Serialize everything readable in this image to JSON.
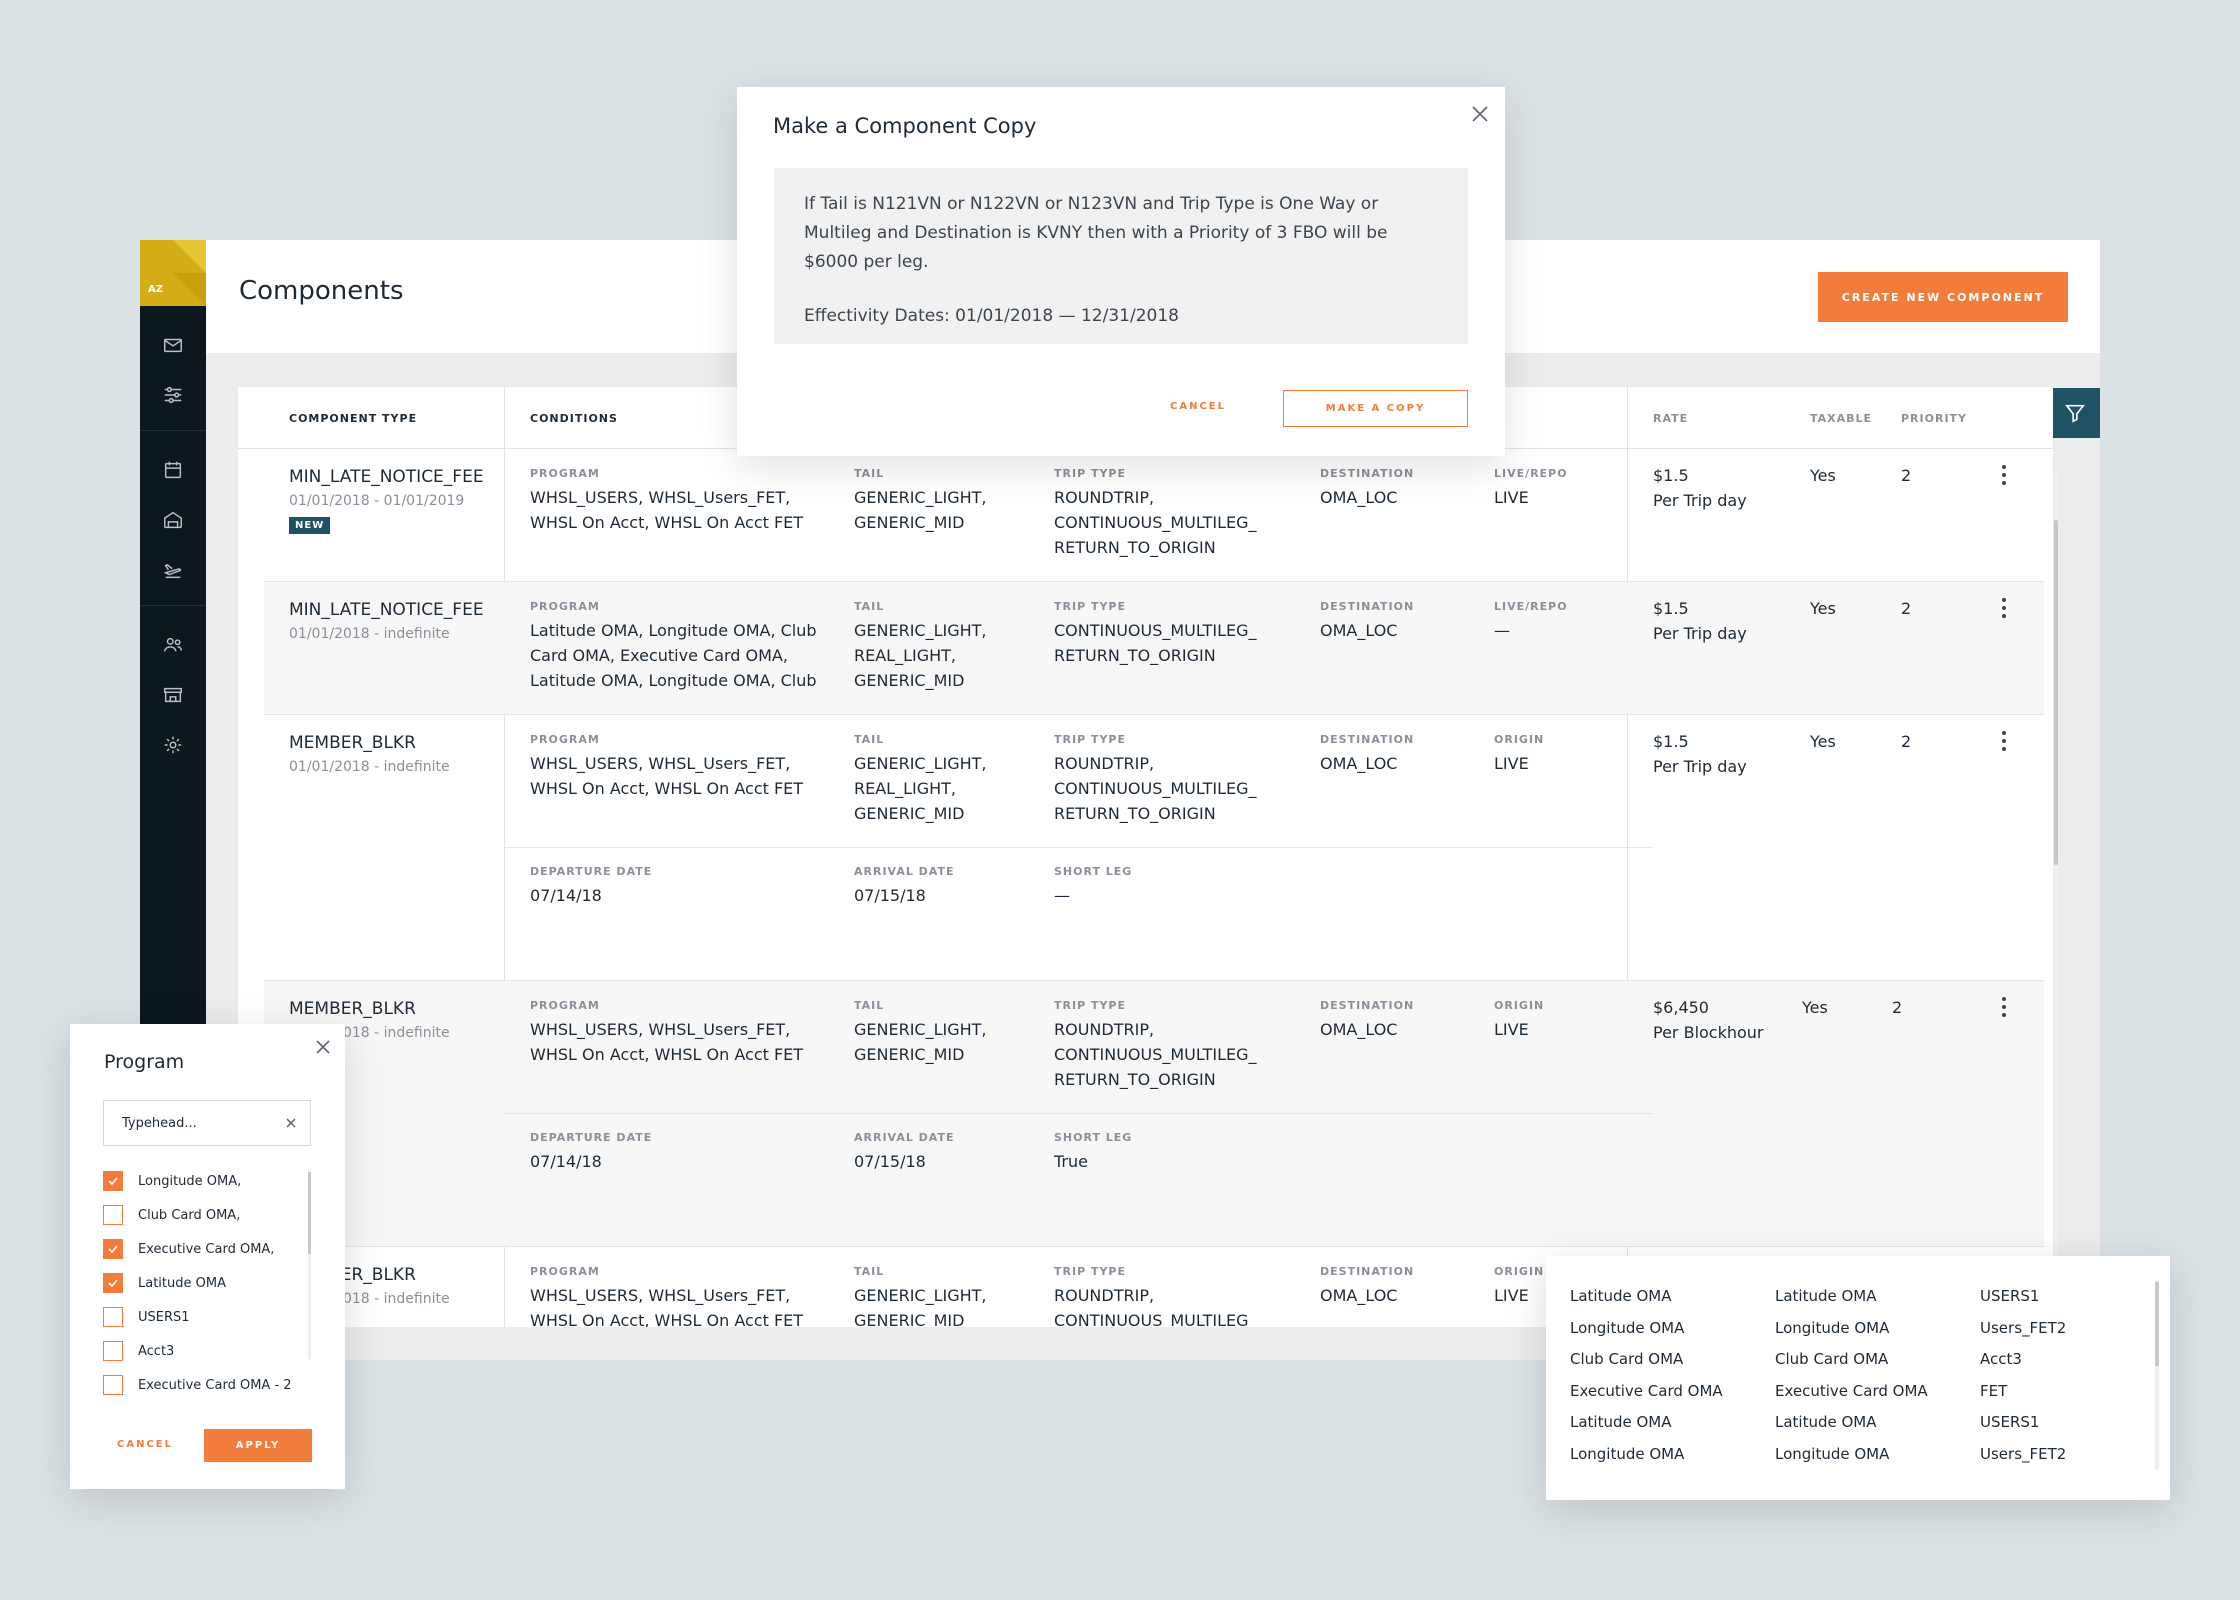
{
  "sidebar": {
    "logo_text": "AZ",
    "icons": [
      "mail-icon",
      "sliders-icon",
      "calendar-icon",
      "hangar-icon",
      "plane-icon",
      "users-icon",
      "store-icon",
      "gear-icon"
    ]
  },
  "header": {
    "title": "Components",
    "create_button": "CREATE NEW COMPONENT"
  },
  "table": {
    "columns": {
      "component_type": "COMPONENT TYPE",
      "conditions": "CONDITIONS",
      "rate": "RATE",
      "taxable": "TAXABLE",
      "priority": "PRIORITY"
    },
    "rows": [
      {
        "type": "MIN_LATE_NOTICE_FEE",
        "dates": "01/01/2018 - 01/01/2019",
        "badge": "NEW",
        "program_label": "PROGRAM",
        "program": "WHSL_USERS, WHSL_Users_FET,\nWHSL On Acct, WHSL On Acct FET",
        "tail_label": "TAIL",
        "tail": "GENERIC_LIGHT,\nGENERIC_MID",
        "trip_label": "TRIP TYPE",
        "trip": "ROUNDTRIP,\nCONTINUOUS_MULTILEG_\nRETURN_TO_ORIGIN",
        "dest_label": "DESTINATION",
        "dest": "OMA_LOC",
        "extra_label": "LIVE/REPO",
        "extra": "LIVE",
        "rate": "$1.5\nPer Trip day",
        "taxable": "Yes",
        "priority": "2"
      },
      {
        "type": "MIN_LATE_NOTICE_FEE",
        "dates": "01/01/2018 - indefinite",
        "program_label": "PROGRAM",
        "program": "Latitude OMA, Longitude OMA, Club\nCard OMA, Executive Card OMA,\nLatitude OMA, Longitude OMA, Club",
        "tail_label": "TAIL",
        "tail": "GENERIC_LIGHT,\nREAL_LIGHT,\nGENERIC_MID",
        "trip_label": "TRIP TYPE",
        "trip": "CONTINUOUS_MULTILEG_\nRETURN_TO_ORIGIN",
        "dest_label": "DESTINATION",
        "dest": "OMA_LOC",
        "extra_label": "LIVE/REPO",
        "extra": "—",
        "rate": "$1.5\nPer Trip day",
        "taxable": "Yes",
        "priority": "2"
      },
      {
        "type": "MEMBER_BLKR",
        "dates": "01/01/2018 - indefinite",
        "program_label": "PROGRAM",
        "program": "WHSL_USERS, WHSL_Users_FET,\nWHSL On Acct, WHSL On Acct FET",
        "tail_label": "TAIL",
        "tail": "GENERIC_LIGHT,\nREAL_LIGHT,\nGENERIC_MID",
        "trip_label": "TRIP TYPE",
        "trip": "ROUNDTRIP,\nCONTINUOUS_MULTILEG_\nRETURN_TO_ORIGIN",
        "dest_label": "DESTINATION",
        "dest": "OMA_LOC",
        "extra_label": "ORIGIN",
        "extra": "LIVE",
        "dep_label": "DEPARTURE DATE",
        "dep": "07/14/18",
        "arr_label": "ARRIVAL DATE",
        "arr": "07/15/18",
        "short_label": "SHORT LEG",
        "short": "—",
        "rate": "$1.5\nPer Trip day",
        "taxable": "Yes",
        "priority": "2"
      },
      {
        "type": "MEMBER_BLKR",
        "dates": "01/01/2018 - indefinite",
        "program_label": "PROGRAM",
        "program": "WHSL_USERS, WHSL_Users_FET,\nWHSL On Acct, WHSL On Acct FET",
        "tail_label": "TAIL",
        "tail": "GENERIC_LIGHT,\nGENERIC_MID",
        "trip_label": "TRIP TYPE",
        "trip": "ROUNDTRIP,\nCONTINUOUS_MULTILEG_\nRETURN_TO_ORIGIN",
        "dest_label": "DESTINATION",
        "dest": "OMA_LOC",
        "extra_label": "ORIGIN",
        "extra": "LIVE",
        "dep_label": "DEPARTURE DATE",
        "dep": "07/14/18",
        "arr_label": "ARRIVAL DATE",
        "arr": "07/15/18",
        "short_label": "SHORT LEG",
        "short": "True",
        "rate": "$6,450\nPer Blockhour",
        "taxable": "Yes",
        "priority": "2"
      },
      {
        "type": "MEMBER_BLKR",
        "dates": "01/01/2018 - indefinite",
        "program_label": "PROGRAM",
        "program": "WHSL_USERS, WHSL_Users_FET,\nWHSL On Acct, WHSL On Acct FET",
        "tail_label": "TAIL",
        "tail": "GENERIC_LIGHT,\nGENERIC_MID",
        "trip_label": "TRIP TYPE",
        "trip": "ROUNDTRIP,\nCONTINUOUS_MULTILEG_",
        "dest_label": "DESTINATION",
        "dest": "OMA_LOC",
        "extra_label": "ORIGIN",
        "extra": "LIVE"
      }
    ]
  },
  "copy_modal": {
    "title": "Make a Component Copy",
    "description": "If Tail is N121VN or N122VN or N123VN and Trip Type is One Way or Multileg and Destination is KVNY then with a Priority of 3 FBO will be $6000 per leg.",
    "effectivity": "Effectivity Dates: 01/01/2018 — 12/31/2018",
    "cancel_label": "CANCEL",
    "copy_label": "MAKE A COPY"
  },
  "program_filter": {
    "title": "Program",
    "search_placeholder": "Typehead...",
    "options": [
      {
        "label": "Longitude OMA,",
        "checked": true
      },
      {
        "label": "Club Card OMA,",
        "checked": false
      },
      {
        "label": "Executive Card OMA,",
        "checked": true
      },
      {
        "label": "Latitude OMA",
        "checked": true
      },
      {
        "label": "USERS1",
        "checked": false
      },
      {
        "label": "Acct3",
        "checked": false
      },
      {
        "label": "Executive Card OMA - 2",
        "checked": false
      }
    ],
    "cancel_label": "CANCEL",
    "apply_label": "APPLY"
  },
  "program_list": {
    "columns": [
      [
        "Latitude OMA",
        "Longitude OMA",
        "Club Card OMA",
        "Executive Card OMA",
        "Latitude OMA",
        "Longitude OMA"
      ],
      [
        "Latitude OMA",
        "Longitude OMA",
        "Club Card OMA",
        "Executive Card OMA",
        "Latitude OMA",
        "Longitude OMA"
      ],
      [
        "USERS1",
        "Users_FET2",
        "Acct3",
        "FET",
        "USERS1",
        "Users_FET2"
      ]
    ]
  },
  "colors": {
    "accent": "#f27c3c",
    "teal": "#1e5365",
    "sidebar": "#0d171e",
    "logo": "#d4ac16"
  }
}
